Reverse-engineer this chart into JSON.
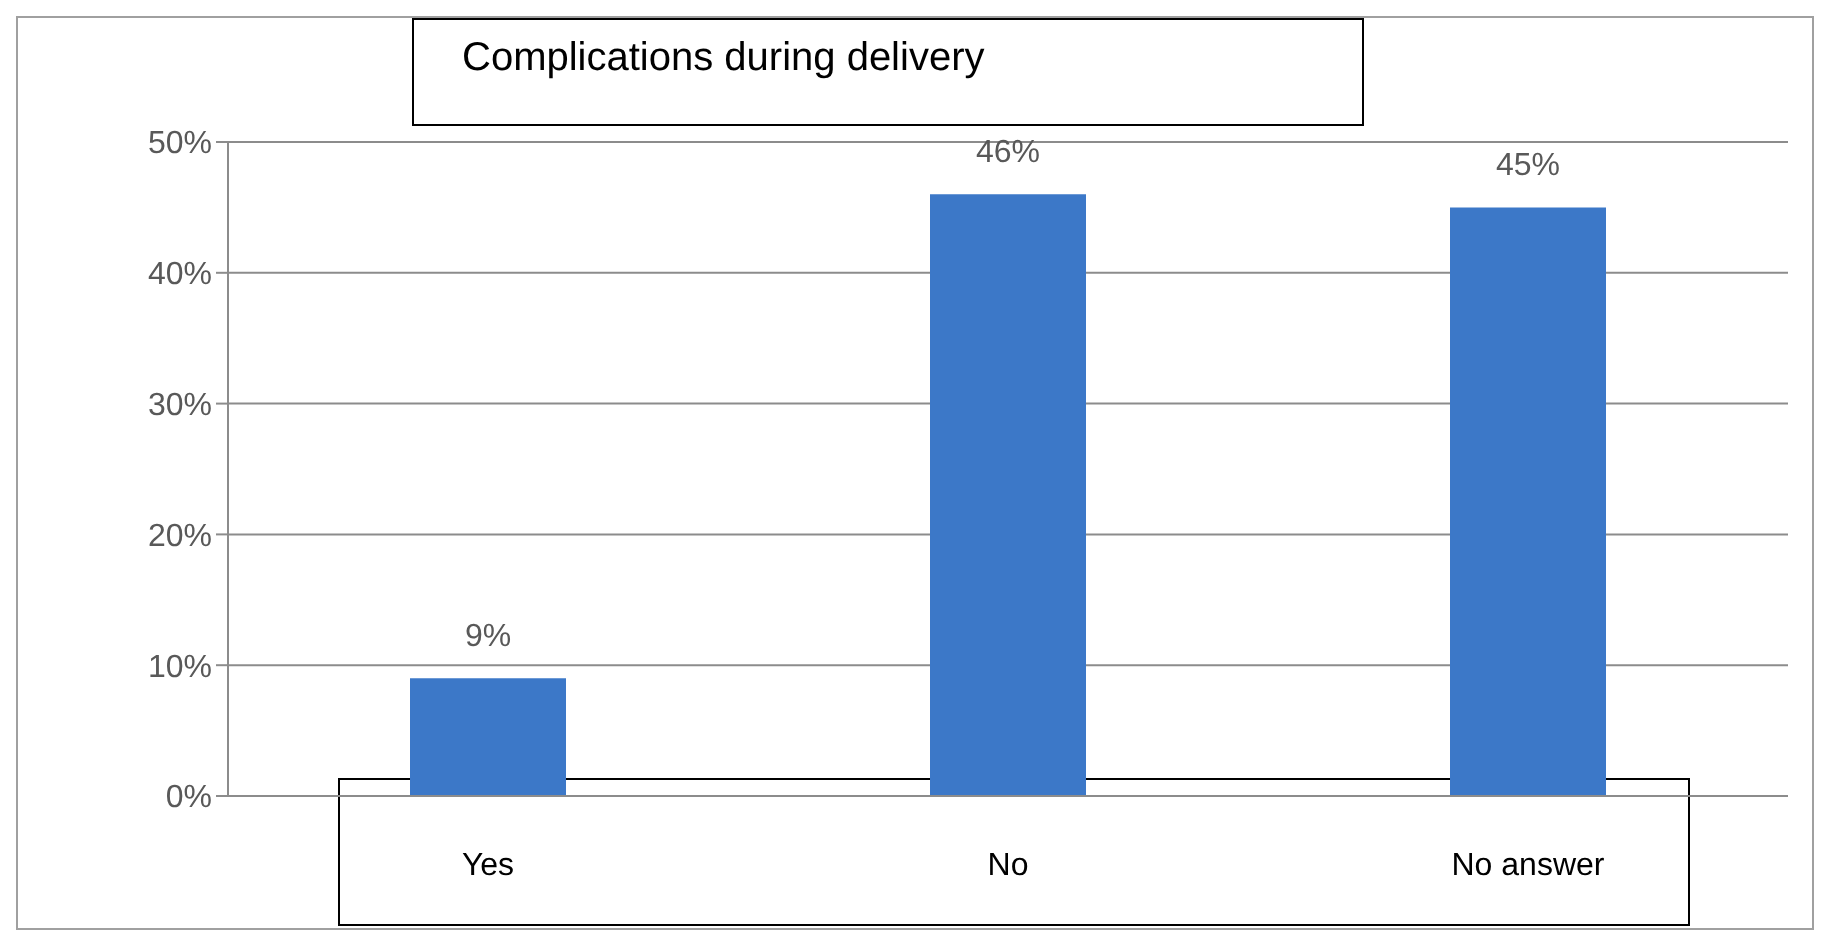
{
  "chart_data": {
    "type": "bar",
    "title": "Complications during delivery",
    "categories": [
      "Yes",
      "No",
      "No answer"
    ],
    "values": [
      9,
      46,
      45
    ],
    "value_labels": [
      "9%",
      "46%",
      "45%"
    ],
    "color": "#3c78c8",
    "ylim": [
      0,
      50
    ],
    "yticks": [
      {
        "value": 0,
        "label": "0%"
      },
      {
        "value": 10,
        "label": "10%"
      },
      {
        "value": 20,
        "label": "20%"
      },
      {
        "value": 30,
        "label": "30%"
      },
      {
        "value": 40,
        "label": "40%"
      },
      {
        "value": 50,
        "label": "50%"
      }
    ],
    "grid": "y"
  }
}
